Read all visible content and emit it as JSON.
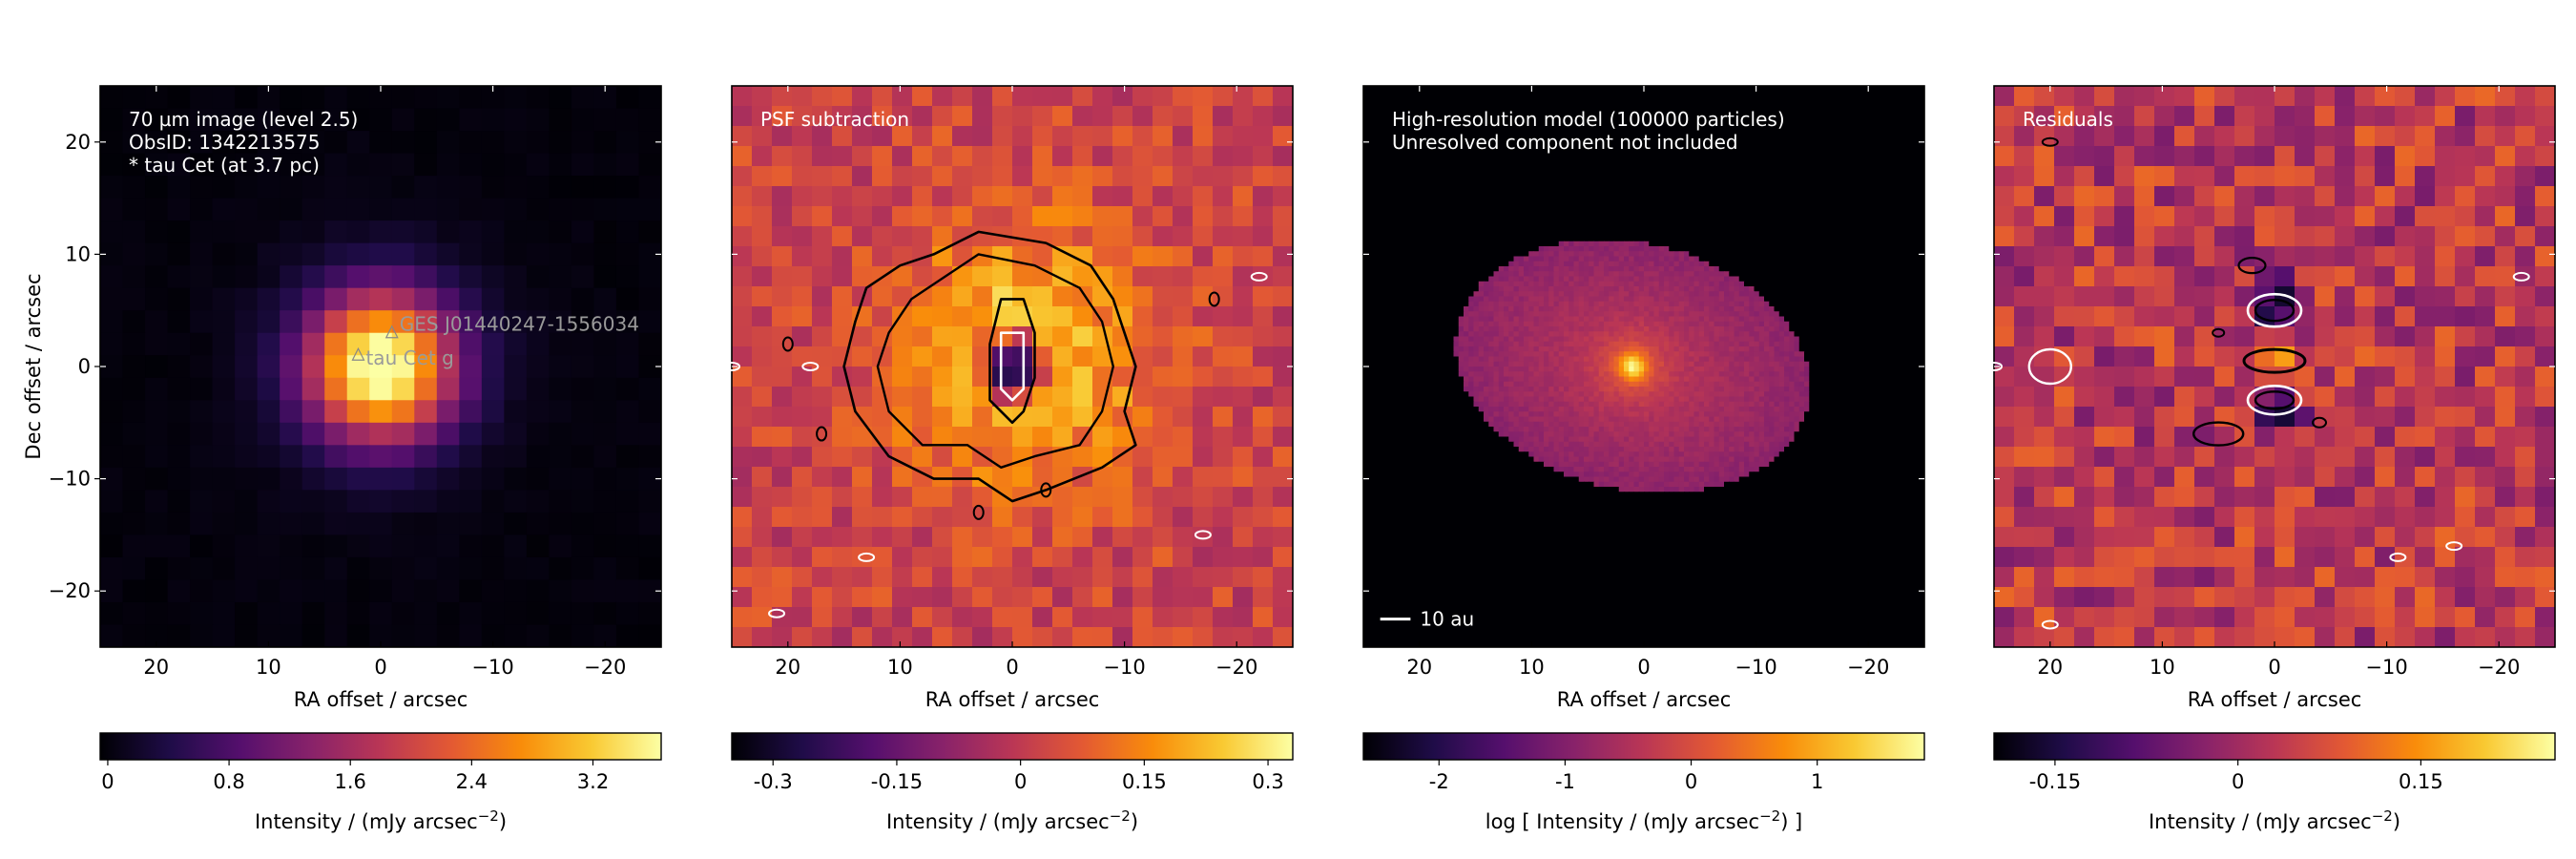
{
  "chart_data": [
    {
      "type": "heatmap",
      "panel": "70 um observed image",
      "annotations": [
        "70 µm image (level 2.5)",
        "ObsID: 1342213575",
        "* tau Cet (at 3.7 pc)"
      ],
      "source_labels": [
        {
          "name": "GES J01440247-1556034",
          "x": -1,
          "y": 3
        },
        {
          "name": "tau Cet g",
          "x": 2,
          "y": 1
        }
      ],
      "xlabel": "RA offset / arcsec",
      "ylabel": "Dec offset / arcsec",
      "xlim": [
        25,
        -25
      ],
      "ylim": [
        -25,
        25
      ],
      "xticks": [
        20,
        10,
        0,
        -10,
        -20
      ],
      "yticks": [
        20,
        10,
        0,
        -10,
        -20
      ],
      "colorscale": "inferno",
      "peak": {
        "x": 0,
        "y": 0,
        "value": 3.6,
        "width_arcsec": 4.5
      },
      "colorbar": {
        "label": "Intensity / (mJy arcsec",
        "label_sup": "−2",
        "label_tail": ")",
        "ticks": [
          0,
          0.8,
          1.6,
          2.4,
          3.2
        ],
        "tick_labels": [
          "0",
          "0.8",
          "1.6",
          "2.4",
          "3.2"
        ],
        "range": [
          -0.05,
          3.65
        ]
      }
    },
    {
      "type": "heatmap",
      "panel": "PSF subtraction",
      "annotations": [
        "PSF subtraction"
      ],
      "xlabel": "RA offset / arcsec",
      "ylabel": "",
      "xlim": [
        25,
        -25
      ],
      "ylim": [
        -25,
        25
      ],
      "xticks": [
        20,
        10,
        0,
        -10,
        -20
      ],
      "yticks": [
        20,
        10,
        0,
        -10,
        -20
      ],
      "colorscale": "inferno",
      "emission": {
        "x": -1,
        "y": 1,
        "value": 0.24,
        "width_arcsec": 8
      },
      "central_hole": {
        "x": 0,
        "y": 0,
        "value": -0.33
      },
      "contours": [
        {
          "level": "outer",
          "color": "#000000",
          "points": [
            [
              7,
              10
            ],
            [
              3,
              12
            ],
            [
              -3,
              11
            ],
            [
              -7,
              9
            ],
            [
              -9,
              6
            ],
            [
              -10,
              3
            ],
            [
              -11,
              0
            ],
            [
              -10,
              -4
            ],
            [
              -11,
              -7
            ],
            [
              -8,
              -9
            ],
            [
              -3,
              -11
            ],
            [
              0,
              -12
            ],
            [
              3,
              -10
            ],
            [
              7,
              -10
            ],
            [
              11,
              -8
            ],
            [
              14,
              -4
            ],
            [
              15,
              0
            ],
            [
              14,
              4
            ],
            [
              13,
              7
            ],
            [
              10,
              9
            ]
          ]
        },
        {
          "level": "inner",
          "color": "#000000",
          "points": [
            [
              6,
              8
            ],
            [
              3,
              10
            ],
            [
              -2,
              9
            ],
            [
              -6,
              7
            ],
            [
              -8,
              4
            ],
            [
              -9,
              0
            ],
            [
              -8,
              -4
            ],
            [
              -6,
              -7
            ],
            [
              -2,
              -8
            ],
            [
              1,
              -9
            ],
            [
              4,
              -7
            ],
            [
              8,
              -7
            ],
            [
              11,
              -4
            ],
            [
              12,
              0
            ],
            [
              11,
              3
            ],
            [
              9,
              6
            ]
          ]
        },
        {
          "level": "hole-outer",
          "color": "#000000",
          "points": [
            [
              1,
              6
            ],
            [
              -1,
              6
            ],
            [
              -2,
              3
            ],
            [
              -2,
              -1
            ],
            [
              -1,
              -4
            ],
            [
              0,
              -5
            ],
            [
              2,
              -3
            ],
            [
              2,
              2
            ]
          ]
        },
        {
          "level": "hole-inner",
          "color": "#ffffff",
          "points": [
            [
              1,
              3
            ],
            [
              -1,
              3
            ],
            [
              -1,
              0
            ],
            [
              -1,
              -2
            ],
            [
              0,
              -3
            ],
            [
              1,
              -2
            ],
            [
              1,
              1
            ]
          ]
        }
      ],
      "colorbar": {
        "label": "Intensity / (mJy arcsec",
        "label_sup": "−2",
        "label_tail": ")",
        "ticks": [
          -0.3,
          -0.15,
          0,
          0.15,
          0.3
        ],
        "tick_labels": [
          "-0.3",
          "-0.15",
          "0",
          "0.15",
          "0.3"
        ],
        "range": [
          -0.35,
          0.33
        ]
      }
    },
    {
      "type": "heatmap",
      "panel": "High-resolution model",
      "annotations": [
        "High-resolution model (100000 particles)",
        "Unresolved component not included"
      ],
      "xlabel": "RA offset / arcsec",
      "ylabel": "",
      "xlim": [
        25,
        -25
      ],
      "ylim": [
        -25,
        25
      ],
      "xticks": [
        20,
        10,
        0,
        -10,
        -20
      ],
      "yticks": [
        20,
        10,
        0,
        -10,
        -20
      ],
      "colorscale": "inferno",
      "disc": {
        "center": [
          1,
          0
        ],
        "semi_major_arcsec": 16,
        "semi_minor_arcsec": 11,
        "tilt_deg": -13,
        "log_level_min": -0.9,
        "log_level_max": -0.3,
        "peak_log": 1.6
      },
      "scalebar": {
        "label": "10 au",
        "length_arcsec": 2.7
      },
      "colorbar": {
        "label": "log [ Intensity / (mJy arcsec",
        "label_sup": "−2",
        "label_tail": ") ]",
        "ticks": [
          -2,
          -1,
          0,
          1
        ],
        "tick_labels": [
          "-2",
          "-1",
          "0",
          "1"
        ],
        "range": [
          -2.6,
          1.85
        ]
      }
    },
    {
      "type": "heatmap",
      "panel": "Residuals",
      "annotations": [
        "Residuals"
      ],
      "xlabel": "RA offset / arcsec",
      "ylabel": "",
      "xlim": [
        25,
        -25
      ],
      "ylim": [
        -25,
        25
      ],
      "xticks": [
        20,
        10,
        0,
        -10,
        -20
      ],
      "yticks": [
        20,
        10,
        0,
        -10,
        -20
      ],
      "colorscale": "inferno",
      "features": [
        {
          "x": 0,
          "y": 5,
          "value": -0.2
        },
        {
          "x": 0,
          "y": 0,
          "value": 0.22
        },
        {
          "x": 0,
          "y": -3,
          "value": -0.2
        }
      ],
      "colorbar": {
        "label": "Intensity / (mJy arcsec",
        "label_sup": "−2",
        "label_tail": ")",
        "ticks": [
          -0.15,
          0,
          0.15
        ],
        "tick_labels": [
          "-0.15",
          "0",
          "0.15"
        ],
        "range": [
          -0.2,
          0.26
        ]
      }
    }
  ]
}
